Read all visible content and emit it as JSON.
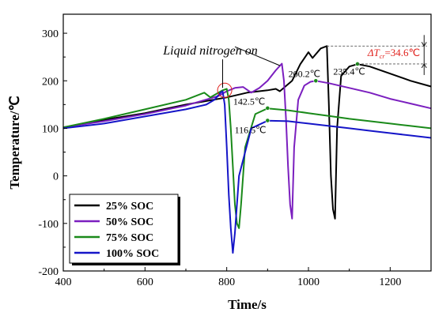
{
  "chart_data": {
    "type": "line",
    "xlabel": "Time/s",
    "ylabel": "Temperature/℃",
    "xlim": [
      400,
      1300
    ],
    "ylim": [
      -200,
      340
    ],
    "xticks": [
      "400",
      "600",
      "800",
      "1000",
      "1200"
    ],
    "yticks": [
      "-200",
      "-100",
      "0",
      "100",
      "200",
      "300"
    ],
    "legend_position": "bottom-left",
    "series": [
      {
        "name": "25% SOC",
        "color": "#000000",
        "x": [
          400,
          500,
          600,
          700,
          800,
          850,
          900,
          920,
          930,
          960,
          980,
          1000,
          1010,
          1030,
          1045,
          1050,
          1055,
          1060,
          1065,
          1070,
          1080,
          1100,
          1120,
          1150,
          1200,
          1250,
          1300
        ],
        "y": [
          102,
          118,
          132,
          150,
          165,
          175,
          180,
          183,
          178,
          200,
          235,
          260,
          248,
          268,
          273,
          150,
          0,
          -70,
          -90,
          100,
          210,
          230,
          235,
          230,
          215,
          200,
          188
        ]
      },
      {
        "name": "50% SOC",
        "color": "#7b1fbf",
        "x": [
          400,
          500,
          600,
          700,
          780,
          800,
          820,
          840,
          860,
          880,
          900,
          920,
          935,
          940,
          945,
          950,
          955,
          960,
          965,
          975,
          990,
          1005,
          1018,
          1050,
          1100,
          1150,
          1200,
          1250,
          1300
        ],
        "y": [
          102,
          115,
          130,
          148,
          168,
          178,
          185,
          187,
          175,
          185,
          200,
          222,
          236,
          200,
          120,
          20,
          -60,
          -90,
          60,
          160,
          190,
          198,
          200,
          195,
          185,
          175,
          162,
          152,
          142
        ]
      },
      {
        "name": "75% SOC",
        "color": "#1a8a1a",
        "x": [
          400,
          500,
          600,
          700,
          745,
          760,
          790,
          800,
          805,
          810,
          815,
          820,
          825,
          830,
          835,
          845,
          870,
          900,
          950,
          1000,
          1050,
          1100,
          1150,
          1200,
          1250,
          1300
        ],
        "y": [
          102,
          120,
          140,
          160,
          175,
          165,
          180,
          183,
          160,
          100,
          20,
          -60,
          -100,
          -110,
          -60,
          60,
          130,
          142,
          138,
          132,
          126,
          120,
          115,
          110,
          105,
          100
        ]
      },
      {
        "name": "100% SOC",
        "color": "#1515c8",
        "x": [
          400,
          500,
          600,
          700,
          750,
          770,
          785,
          790,
          795,
          800,
          805,
          810,
          815,
          820,
          830,
          860,
          900,
          950,
          1000,
          1050,
          1100,
          1150,
          1200,
          1250,
          1300
        ],
        "y": [
          100,
          110,
          125,
          140,
          150,
          160,
          175,
          178,
          150,
          60,
          -40,
          -110,
          -162,
          -120,
          0,
          100,
          116,
          115,
          110,
          105,
          100,
          95,
          90,
          85,
          80
        ]
      }
    ],
    "markers": [
      {
        "x": 1018,
        "y": 200,
        "color": "#1a8a1a"
      },
      {
        "x": 1120,
        "y": 235.4,
        "color": "#1a8a1a"
      },
      {
        "x": 900,
        "y": 142.5,
        "color": "#1a8a1a"
      },
      {
        "x": 900,
        "y": 116.5,
        "color": "#1a8a1a"
      }
    ],
    "annotations": [
      {
        "text": "Liquid nitrogen on",
        "x": 760,
        "y": 255
      },
      {
        "text": "200.2℃",
        "x": 990,
        "y": 208
      },
      {
        "text": "235.4℃",
        "x": 1100,
        "y": 213
      },
      {
        "text": "142.5℃",
        "x": 855,
        "y": 150
      },
      {
        "text": "116.5℃",
        "x": 858,
        "y": 90
      }
    ],
    "delta_annotation": {
      "label": "ΔT",
      "subscript": "cr",
      "value": "=34.6℃"
    }
  }
}
